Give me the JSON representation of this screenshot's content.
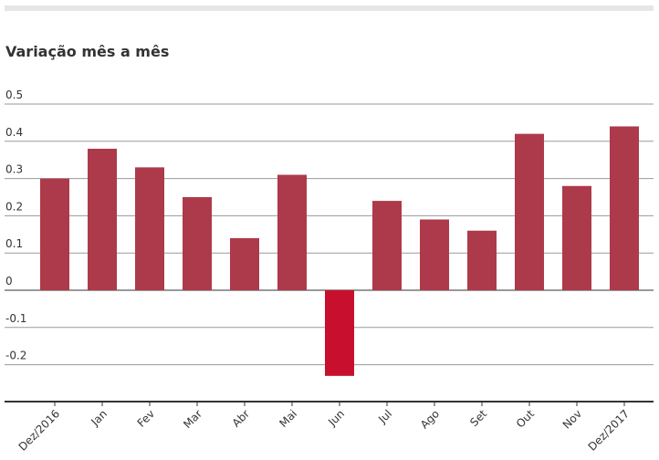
{
  "title": "Variação mês a mês",
  "colors": {
    "positive": "#ad3a4a",
    "negative": "#c8102e",
    "grid": "#9a9a9a",
    "axis": "#333333"
  },
  "chart_data": {
    "type": "bar",
    "title": "Variação mês a mês",
    "categories": [
      "Dez/2016",
      "Jan",
      "Fev",
      "Mar",
      "Abr",
      "Mai",
      "Jun",
      "Jul",
      "Ago",
      "Set",
      "Out",
      "Nov",
      "Dez/2017"
    ],
    "values": [
      0.3,
      0.38,
      0.33,
      0.25,
      0.14,
      0.31,
      -0.23,
      0.24,
      0.19,
      0.16,
      0.42,
      0.28,
      0.44
    ],
    "yticks": [
      "0.5",
      "0.4",
      "0.3",
      "0.2",
      "0.1",
      "0",
      "-0.1",
      "-0.2"
    ],
    "ytick_values": [
      0.5,
      0.4,
      0.3,
      0.2,
      0.1,
      0,
      -0.1,
      -0.2
    ],
    "ylim": [
      -0.3,
      0.5
    ],
    "grid": true,
    "xlabel": "",
    "ylabel": ""
  }
}
